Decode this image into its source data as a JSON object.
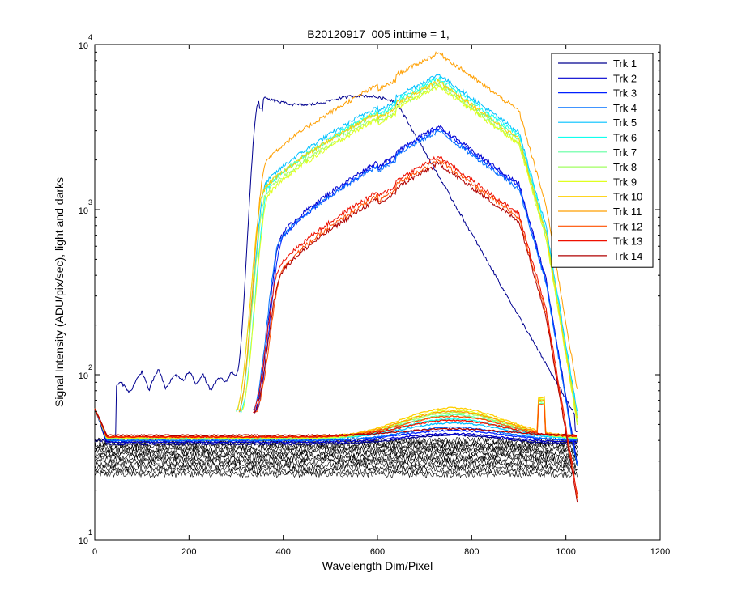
{
  "chart_data": {
    "type": "line",
    "title": "B20120917_005 inttime = 1,",
    "xlabel": "Wavelength Dim/Pixel",
    "ylabel": "Signal Intensity (ADU/pix/sec), light and darks",
    "xlim": [
      0,
      1200
    ],
    "ylim": [
      10,
      10000
    ],
    "yscale": "log",
    "grid": false,
    "legend_position": "top-right",
    "x_ticks": [
      "0",
      "200",
      "400",
      "600",
      "800",
      "1000",
      "1200"
    ],
    "y_ticks": [
      {
        "base": "10",
        "exp": "1"
      },
      {
        "base": "10",
        "exp": "2"
      },
      {
        "base": "10",
        "exp": "3"
      },
      {
        "base": "10",
        "exp": "4"
      }
    ],
    "series": [
      {
        "name": "Trk 1",
        "color": "#00008f",
        "peak": 5000,
        "profile": "trk1",
        "flat_level": 38,
        "low_hump": 43
      },
      {
        "name": "Trk 2",
        "color": "#0000cf",
        "peak": 3200,
        "profile": "blue",
        "flat_level": 39,
        "low_hump": 44
      },
      {
        "name": "Trk 3",
        "color": "#0020ff",
        "peak": 3100,
        "profile": "blue",
        "flat_level": 40,
        "low_hump": 46
      },
      {
        "name": "Trk 4",
        "color": "#0070ff",
        "peak": 3000,
        "profile": "blue",
        "flat_level": 40,
        "low_hump": 48
      },
      {
        "name": "Trk 5",
        "color": "#00c0ff",
        "peak": 6600,
        "profile": "main",
        "flat_level": 41,
        "low_hump": 51
      },
      {
        "name": "Trk 6",
        "color": "#10ffef",
        "peak": 6300,
        "profile": "main",
        "flat_level": 41,
        "low_hump": 54
      },
      {
        "name": "Trk 7",
        "color": "#60ffa0",
        "peak": 6000,
        "profile": "main",
        "flat_level": 41,
        "low_hump": 57
      },
      {
        "name": "Trk 8",
        "color": "#a0ff60",
        "peak": 5700,
        "profile": "main",
        "flat_level": 41,
        "low_hump": 59
      },
      {
        "name": "Trk 9",
        "color": "#e0ff20",
        "peak": 5600,
        "profile": "main",
        "flat_level": 41,
        "low_hump": 61
      },
      {
        "name": "Trk 10",
        "color": "#ffcf00",
        "peak": 6000,
        "profile": "main",
        "flat_level": 42,
        "low_hump": 63
      },
      {
        "name": "Trk 11",
        "color": "#ff9f00",
        "peak": 8900,
        "profile": "main",
        "flat_level": 42,
        "low_hump": 60
      },
      {
        "name": "Trk 12",
        "color": "#ff5000",
        "peak": 2000,
        "profile": "red",
        "flat_level": 42,
        "low_hump": 56
      },
      {
        "name": "Trk 13",
        "color": "#ef1000",
        "peak": 2100,
        "profile": "red",
        "flat_level": 42,
        "low_hump": 53
      },
      {
        "name": "Trk 14",
        "color": "#b00000",
        "peak": 1900,
        "profile": "red",
        "flat_level": 43,
        "low_hump": 47
      }
    ],
    "darks": {
      "color": "#000000",
      "min": 25,
      "max": 40,
      "count": 14
    }
  }
}
